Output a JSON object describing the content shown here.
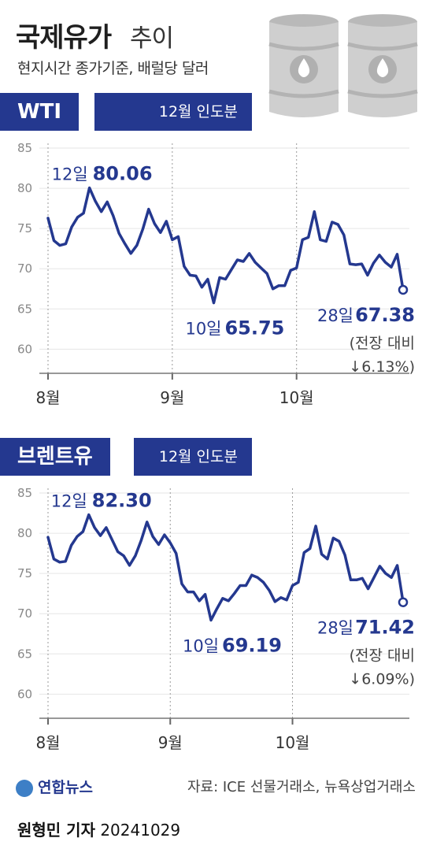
{
  "title": "국제유가",
  "title_suffix": "추이",
  "subtitle": "현지시간 종가기준, 배럴당 달러",
  "footer": {
    "logo_text": "연합뉴스",
    "source": "자료: ICE 선물거래소, 뉴욕상업거래소",
    "reporter_name": "원형민 기자",
    "reporter_date": "20241029"
  },
  "colors": {
    "accent": "#24388f",
    "line": "#24388f",
    "grid": "#e6e6e6",
    "barrel": "#c9c9c9"
  },
  "chart_data": [
    {
      "type": "line",
      "name": "WTI",
      "note": "12월 인도분",
      "y_ticks": [
        85,
        80,
        75,
        70,
        65,
        60
      ],
      "ylim": [
        57,
        85
      ],
      "x_labels": [
        "8월",
        "9월",
        "10월"
      ],
      "x_label_index": [
        0,
        21,
        42
      ],
      "values": [
        76.3,
        73.5,
        72.9,
        73.1,
        75.2,
        76.4,
        76.9,
        80.06,
        78.4,
        77.1,
        78.3,
        76.6,
        74.4,
        73.1,
        71.9,
        72.9,
        74.9,
        77.4,
        75.6,
        74.5,
        75.9,
        73.6,
        74.0,
        70.3,
        69.2,
        69.1,
        67.7,
        68.7,
        65.75,
        68.9,
        68.7,
        69.9,
        71.1,
        70.9,
        71.9,
        70.8,
        70.1,
        69.4,
        67.5,
        67.9,
        67.9,
        69.8,
        70.1,
        73.6,
        73.9,
        77.1,
        73.6,
        73.4,
        75.8,
        75.5,
        74.2,
        70.6,
        70.5,
        70.6,
        69.2,
        70.7,
        71.7,
        70.8,
        70.2,
        71.8,
        67.38
      ],
      "callouts": {
        "high": {
          "day": "12일",
          "value": "80.06"
        },
        "low": {
          "day": "10일",
          "value": "65.75"
        },
        "last": {
          "day": "28일",
          "value": "67.38",
          "change_label": "(전장 대비",
          "change": "↓6.13%)"
        }
      }
    },
    {
      "type": "line",
      "name": "브렌트유",
      "note": "12월 인도분",
      "y_ticks": [
        85,
        80,
        75,
        70,
        65,
        60
      ],
      "ylim": [
        57,
        85
      ],
      "x_labels": [
        "8월",
        "9월",
        "10월"
      ],
      "x_label_index": [
        0,
        21,
        42
      ],
      "values": [
        79.5,
        76.8,
        76.4,
        76.5,
        78.5,
        79.6,
        80.2,
        82.3,
        80.7,
        79.7,
        80.7,
        79.2,
        77.7,
        77.2,
        76.0,
        77.2,
        79.1,
        81.4,
        79.6,
        78.6,
        79.8,
        78.8,
        77.5,
        73.7,
        72.7,
        72.7,
        71.6,
        72.4,
        69.19,
        70.6,
        71.9,
        71.6,
        72.5,
        73.5,
        73.5,
        74.8,
        74.5,
        73.9,
        72.9,
        71.5,
        72.0,
        71.7,
        73.5,
        73.9,
        77.6,
        78.1,
        80.9,
        77.4,
        76.8,
        79.4,
        79.0,
        77.3,
        74.2,
        74.2,
        74.4,
        73.1,
        74.5,
        75.9,
        75.0,
        74.5,
        76.0,
        71.42
      ],
      "callouts": {
        "high": {
          "day": "12일",
          "value": "82.30"
        },
        "low": {
          "day": "10일",
          "value": "69.19"
        },
        "last": {
          "day": "28일",
          "value": "71.42",
          "change_label": "(전장 대비",
          "change": "↓6.09%)"
        }
      }
    }
  ]
}
